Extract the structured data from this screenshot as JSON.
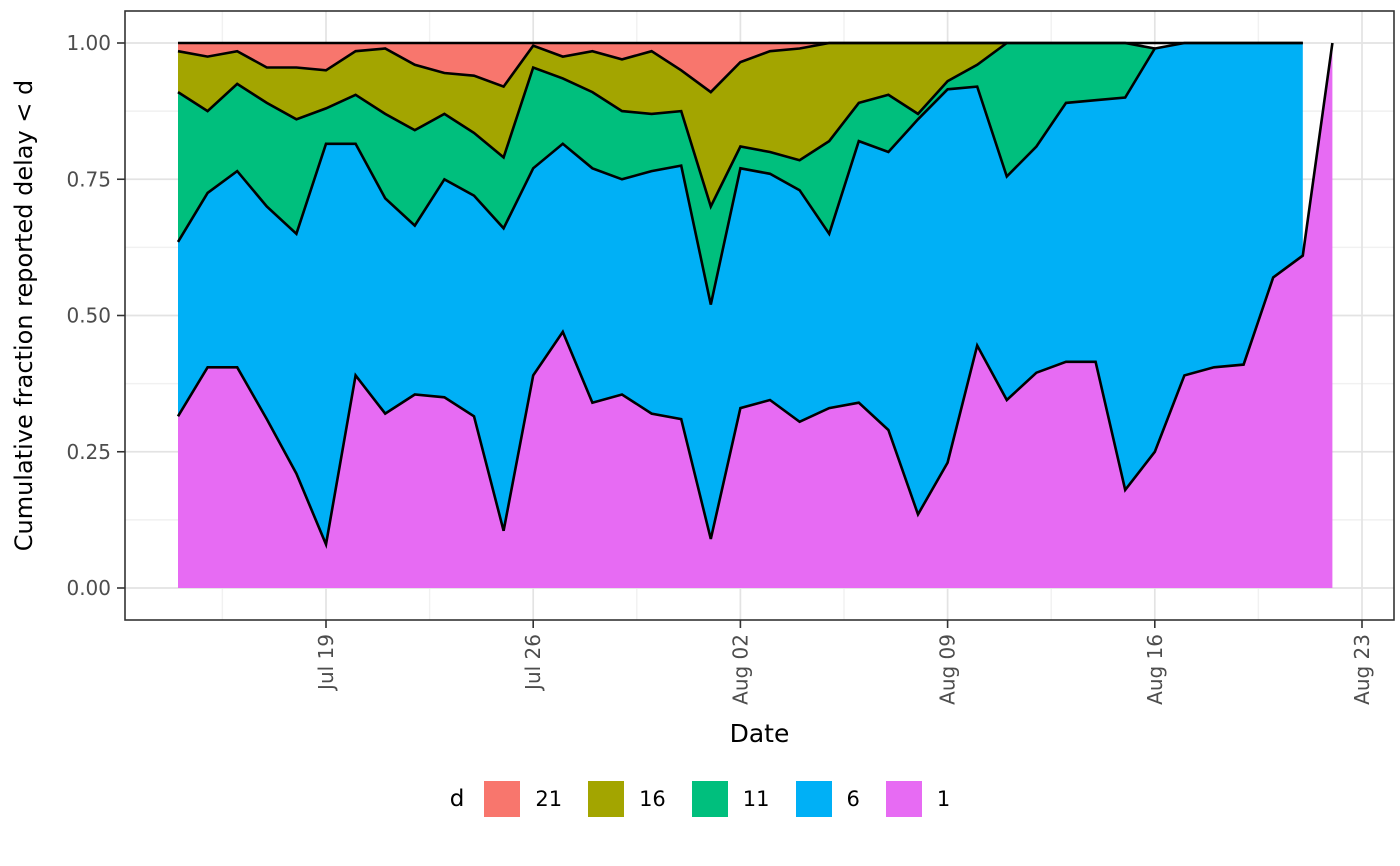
{
  "axes": {
    "y_title": "Cumulative fraction reported delay < d",
    "x_title": "Date",
    "y_ticks": [
      "1.00",
      "0.75",
      "0.50",
      "0.25",
      "0.00"
    ],
    "y_tick_values": [
      1.0,
      0.75,
      0.5,
      0.25,
      0.0
    ],
    "x_ticks": [
      "Jul 19",
      "Jul 26",
      "Aug 02",
      "Aug 09",
      "Aug 16",
      "Aug 23"
    ],
    "x_tick_days": [
      5,
      12,
      19,
      26,
      33,
      40
    ],
    "x_minor_days": [
      1.5,
      8.5,
      15.5,
      22.5,
      29.5,
      36.5
    ],
    "y_minor_values": [
      0.125,
      0.375,
      0.625,
      0.875
    ],
    "ylim": [
      0.0,
      1.0
    ]
  },
  "legend": {
    "title": "d",
    "items": [
      {
        "label": "21",
        "color": "#F8766D"
      },
      {
        "label": "16",
        "color": "#A3A500"
      },
      {
        "label": "11",
        "color": "#00BF7D"
      },
      {
        "label": "6",
        "color": "#00B0F6"
      },
      {
        "label": "1",
        "color": "#E76BF3"
      }
    ]
  },
  "colors": {
    "line": "#000000",
    "panel_border": "#333333",
    "grid_major": "#E3E3E3",
    "grid_minor": "#F1F1F1",
    "tick_mark": "#333333",
    "tick_label": "#4D4D4D",
    "axis_title": "#000000",
    "background": "#FFFFFF"
  },
  "chart_data": {
    "type": "area",
    "title": "",
    "xlabel": "Date",
    "ylabel": "Cumulative fraction reported delay < d",
    "ylim": [
      0.0,
      1.0
    ],
    "grid": true,
    "legend_position": "bottom",
    "stack_note": "stacked cumulative fractions; each series array gives the TOP boundary (cumulative fraction reported with delay < d) per day; shorter arrays end early where that band pinches out at 1.0",
    "dates": [
      "Jul 14",
      "Jul 15",
      "Jul 16",
      "Jul 17",
      "Jul 18",
      "Jul 19",
      "Jul 20",
      "Jul 21",
      "Jul 22",
      "Jul 23",
      "Jul 24",
      "Jul 25",
      "Jul 26",
      "Jul 27",
      "Jul 28",
      "Jul 29",
      "Jul 30",
      "Jul 31",
      "Aug 01",
      "Aug 02",
      "Aug 03",
      "Aug 04",
      "Aug 05",
      "Aug 06",
      "Aug 07",
      "Aug 08",
      "Aug 09",
      "Aug 10",
      "Aug 11",
      "Aug 12",
      "Aug 13",
      "Aug 14",
      "Aug 15",
      "Aug 16",
      "Aug 17",
      "Aug 18",
      "Aug 19",
      "Aug 20",
      "Aug 21",
      "Aug 22"
    ],
    "series": [
      {
        "name": "d1",
        "legend_label": "1",
        "color": "#E76BF3",
        "cum": [
          0.315,
          0.405,
          0.405,
          0.31,
          0.21,
          0.08,
          0.39,
          0.32,
          0.355,
          0.35,
          0.315,
          0.105,
          0.39,
          0.47,
          0.34,
          0.355,
          0.32,
          0.31,
          0.09,
          0.33,
          0.345,
          0.305,
          0.33,
          0.34,
          0.29,
          0.135,
          0.23,
          0.445,
          0.345,
          0.395,
          0.415,
          0.415,
          0.18,
          0.25,
          0.39,
          0.405,
          0.41,
          0.57,
          0.61,
          1.0
        ]
      },
      {
        "name": "d6",
        "legend_label": "6",
        "color": "#00B0F6",
        "cum": [
          0.635,
          0.725,
          0.765,
          0.7,
          0.65,
          0.815,
          0.815,
          0.715,
          0.665,
          0.75,
          0.72,
          0.66,
          0.77,
          0.815,
          0.77,
          0.75,
          0.765,
          0.775,
          0.52,
          0.77,
          0.76,
          0.73,
          0.65,
          0.82,
          0.8,
          0.86,
          0.915,
          0.92,
          0.755,
          0.81,
          0.89,
          0.895,
          0.9,
          0.99,
          1.0,
          1.0,
          1.0,
          1.0,
          1.0
        ]
      },
      {
        "name": "d11",
        "legend_label": "11",
        "color": "#00BF7D",
        "cum": [
          0.91,
          0.875,
          0.925,
          0.89,
          0.86,
          0.88,
          0.905,
          0.87,
          0.84,
          0.87,
          0.835,
          0.79,
          0.955,
          0.935,
          0.91,
          0.875,
          0.87,
          0.875,
          0.7,
          0.81,
          0.8,
          0.785,
          0.82,
          0.89,
          0.905,
          0.87,
          0.93,
          0.96,
          1.0,
          1.0,
          1.0,
          1.0,
          1.0,
          0.99
        ]
      },
      {
        "name": "d16",
        "legend_label": "16",
        "color": "#A3A500",
        "cum": [
          0.985,
          0.975,
          0.985,
          0.955,
          0.955,
          0.95,
          0.985,
          0.99,
          0.96,
          0.945,
          0.94,
          0.92,
          0.995,
          0.975,
          0.985,
          0.97,
          0.985,
          0.95,
          0.91,
          0.965,
          0.985,
          0.99,
          1.0,
          1.0,
          1.0,
          1.0,
          1.0,
          1.0,
          1.0
        ]
      },
      {
        "name": "d21",
        "legend_label": "21",
        "color": "#F8766D",
        "cum": [
          1.0,
          1.0,
          1.0,
          1.0,
          1.0,
          1.0,
          1.0,
          1.0,
          1.0,
          1.0,
          1.0,
          1.0,
          1.0,
          1.0,
          1.0,
          1.0,
          1.0,
          1.0,
          1.0,
          1.0,
          1.0,
          1.0,
          1.0,
          1.0,
          1.0,
          1.0,
          1.0,
          1.0,
          1.0,
          1.0,
          1.0,
          1.0,
          1.0,
          1.0,
          1.0,
          1.0,
          1.0,
          1.0,
          1.0
        ]
      }
    ]
  }
}
